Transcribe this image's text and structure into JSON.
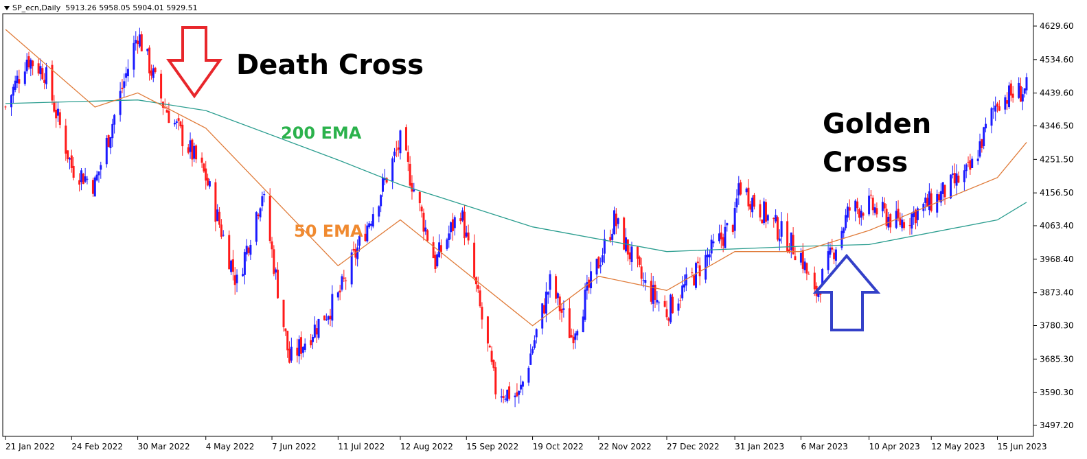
{
  "header": {
    "symbol": "SP_ecn,Daily",
    "ohlc": "5913.26 5958.05 5904.01 5929.51"
  },
  "annotations": {
    "death_cross": "Death Cross",
    "golden_cross_line1": "Golden",
    "golden_cross_line2": "Cross",
    "ema200_label": "200 EMA",
    "ema50_label": "50 EMA"
  },
  "colors": {
    "bull": "#1a1aff",
    "bear": "#ff1a1a",
    "ema200": "#2a9d8f",
    "ema50": "#e07b39",
    "death_arrow": "#e8262b",
    "golden_arrow": "#3340c8",
    "ema200_text": "#2bb24c",
    "ema50_text": "#f08a30"
  },
  "chart_data": {
    "type": "candlestick",
    "title": "SP_ecn,Daily",
    "y_ticks": [
      4629.6,
      4534.6,
      4439.6,
      4346.5,
      4251.5,
      4156.5,
      4063.4,
      3968.4,
      3873.4,
      3780.3,
      3685.3,
      3590.3,
      3497.2
    ],
    "ylim": [
      3480,
      4660
    ],
    "x_ticks": [
      "21 Jan 2022",
      "24 Feb 2022",
      "30 Mar 2022",
      "4 May 2022",
      "7 Jun 2022",
      "11 Jul 2022",
      "12 Aug 2022",
      "15 Sep 2022",
      "19 Oct 2022",
      "22 Nov 2022",
      "27 Dec 2022",
      "31 Jan 2023",
      "6 Mar 2023",
      "10 Apr 2023",
      "12 May 2023",
      "15 Jun 2023"
    ],
    "close_path": [
      {
        "date": "21 Jan 2022",
        "close": 4400
      },
      {
        "date": "1 Feb 2022",
        "close": 4540
      },
      {
        "date": "10 Feb 2022",
        "close": 4500
      },
      {
        "date": "24 Feb 2022",
        "close": 4230
      },
      {
        "date": "8 Mar 2022",
        "close": 4180
      },
      {
        "date": "30 Mar 2022",
        "close": 4610
      },
      {
        "date": "12 Apr 2022",
        "close": 4410
      },
      {
        "date": "4 May 2022",
        "close": 4200
      },
      {
        "date": "20 May 2022",
        "close": 3900
      },
      {
        "date": "2 Jun 2022",
        "close": 4160
      },
      {
        "date": "16 Jun 2022",
        "close": 3680
      },
      {
        "date": "11 Jul 2022",
        "close": 3860
      },
      {
        "date": "12 Aug 2022",
        "close": 4300
      },
      {
        "date": "30 Aug 2022",
        "close": 3960
      },
      {
        "date": "12 Sep 2022",
        "close": 4110
      },
      {
        "date": "30 Sep 2022",
        "close": 3600
      },
      {
        "date": "12 Oct 2022",
        "close": 3580
      },
      {
        "date": "28 Oct 2022",
        "close": 3900
      },
      {
        "date": "8 Nov 2022",
        "close": 3750
      },
      {
        "date": "30 Nov 2022",
        "close": 4080
      },
      {
        "date": "15 Dec 2022",
        "close": 3900
      },
      {
        "date": "27 Dec 2022",
        "close": 3820
      },
      {
        "date": "31 Jan 2023",
        "close": 4080
      },
      {
        "date": "2 Feb 2023",
        "close": 4180
      },
      {
        "date": "6 Mar 2023",
        "close": 3980
      },
      {
        "date": "13 Mar 2023",
        "close": 3860
      },
      {
        "date": "31 Mar 2023",
        "close": 4110
      },
      {
        "date": "10 Apr 2023",
        "close": 4120
      },
      {
        "date": "25 Apr 2023",
        "close": 4070
      },
      {
        "date": "12 May 2023",
        "close": 4130
      },
      {
        "date": "1 Jun 2023",
        "close": 4220
      },
      {
        "date": "15 Jun 2023",
        "close": 4420
      },
      {
        "date": "30 Jun 2023",
        "close": 4450
      }
    ],
    "ema200": [
      {
        "date": "21 Jan 2022",
        "value": 4410
      },
      {
        "date": "30 Mar 2022",
        "value": 4420
      },
      {
        "date": "4 May 2022",
        "value": 4390
      },
      {
        "date": "11 Jul 2022",
        "value": 4250
      },
      {
        "date": "12 Aug 2022",
        "value": 4180
      },
      {
        "date": "19 Oct 2022",
        "value": 4060
      },
      {
        "date": "27 Dec 2022",
        "value": 3990
      },
      {
        "date": "6 Mar 2023",
        "value": 4005
      },
      {
        "date": "10 Apr 2023",
        "value": 4010
      },
      {
        "date": "15 Jun 2023",
        "value": 4080
      },
      {
        "date": "30 Jun 2023",
        "value": 4130
      }
    ],
    "ema50": [
      {
        "date": "21 Jan 2022",
        "value": 4620
      },
      {
        "date": "8 Mar 2022",
        "value": 4400
      },
      {
        "date": "30 Mar 2022",
        "value": 4440
      },
      {
        "date": "4 May 2022",
        "value": 4340
      },
      {
        "date": "11 Jul 2022",
        "value": 3950
      },
      {
        "date": "12 Aug 2022",
        "value": 4080
      },
      {
        "date": "19 Oct 2022",
        "value": 3780
      },
      {
        "date": "22 Nov 2022",
        "value": 3920
      },
      {
        "date": "27 Dec 2022",
        "value": 3880
      },
      {
        "date": "31 Jan 2023",
        "value": 3990
      },
      {
        "date": "6 Mar 2023",
        "value": 3990
      },
      {
        "date": "10 Apr 2023",
        "value": 4050
      },
      {
        "date": "15 Jun 2023",
        "value": 4200
      },
      {
        "date": "30 Jun 2023",
        "value": 4300
      }
    ]
  }
}
